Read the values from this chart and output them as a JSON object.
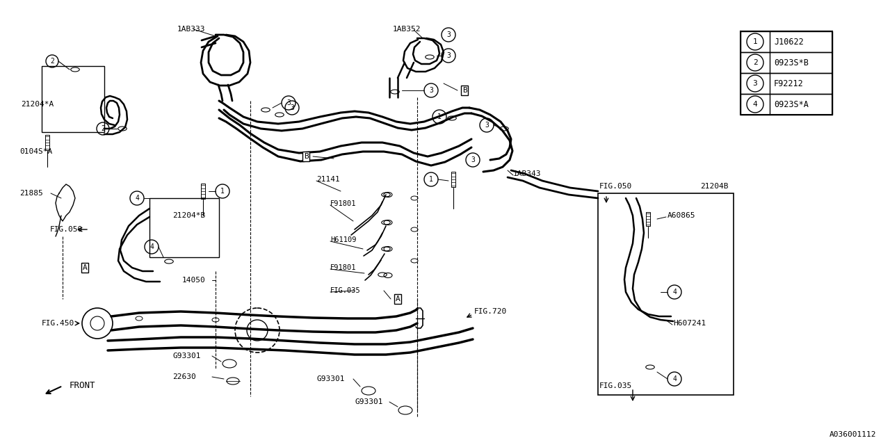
{
  "background_color": "#ffffff",
  "line_color": "#000000",
  "text_color": "#000000",
  "part_number_bottom_right": "A036001112",
  "legend_items": [
    {
      "num": "1",
      "code": "J10622"
    },
    {
      "num": "2",
      "code": "0923S*B"
    },
    {
      "num": "3",
      "code": "F92212"
    },
    {
      "num": "4",
      "code": "0923S*A"
    }
  ]
}
